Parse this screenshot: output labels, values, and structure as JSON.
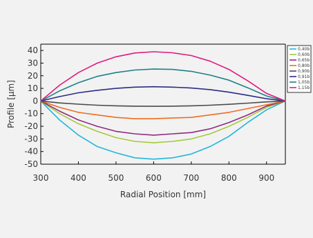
{
  "chart_data": {
    "type": "line",
    "title": "",
    "xlabel": "Radial Position [mm]",
    "ylabel": "Profile [µm]",
    "xlim": [
      300,
      950
    ],
    "ylim": [
      -50,
      45
    ],
    "xticks": [
      300,
      400,
      500,
      600,
      700,
      800,
      900
    ],
    "yticks": [
      40,
      30,
      20,
      10,
      0,
      -10,
      -20,
      -30,
      -40,
      -50
    ],
    "grid": false,
    "legend_position": "top-right",
    "x": [
      300,
      350,
      400,
      450,
      500,
      550,
      600,
      650,
      700,
      750,
      800,
      850,
      900,
      950
    ],
    "series": [
      {
        "name": "0,40b",
        "color": "#22b5d8",
        "values": [
          0,
          -15,
          -27,
          -36,
          -41,
          -45,
          -46,
          -45,
          -42,
          -36,
          -28,
          -17,
          -7,
          0
        ]
      },
      {
        "name": "0,60b",
        "color": "#a4c93b",
        "values": [
          0,
          -10,
          -18,
          -24,
          -29,
          -32,
          -33,
          -32,
          -30,
          -26,
          -20,
          -13,
          -5,
          0
        ]
      },
      {
        "name": "0,65b",
        "color": "#8e2a80",
        "values": [
          0,
          -8,
          -15,
          -20,
          -24,
          -26,
          -27,
          -26,
          -25,
          -22,
          -17,
          -11,
          -4,
          0
        ]
      },
      {
        "name": "0,80b",
        "color": "#ef6c1f",
        "values": [
          0,
          -5,
          -9,
          -11,
          -13,
          -14,
          -14,
          -13.5,
          -13,
          -11,
          -9,
          -6,
          -3,
          0
        ]
      },
      {
        "name": "0,90b",
        "color": "#4a4a4a",
        "values": [
          0,
          -1.5,
          -2.5,
          -3.3,
          -3.8,
          -4.1,
          -4.2,
          -4.1,
          -3.8,
          -3.3,
          -2.6,
          -1.7,
          -0.7,
          0
        ]
      },
      {
        "name": "0,91b",
        "color": "#2c2a86",
        "values": [
          0,
          3.5,
          6.5,
          8.5,
          10,
          11,
          11.3,
          11,
          10.3,
          9,
          7,
          4.5,
          1.8,
          0
        ]
      },
      {
        "name": "1,05b",
        "color": "#1d7f86",
        "values": [
          0,
          8,
          14.5,
          19.5,
          22.5,
          24.5,
          25.3,
          25,
          23.5,
          20.5,
          16.5,
          10.5,
          4,
          0
        ]
      },
      {
        "name": "1,15b",
        "color": "#e0197d",
        "values": [
          0,
          12.5,
          22.5,
          30,
          35,
          38,
          39,
          38.2,
          36,
          31.5,
          25,
          16,
          6,
          0
        ]
      }
    ]
  }
}
